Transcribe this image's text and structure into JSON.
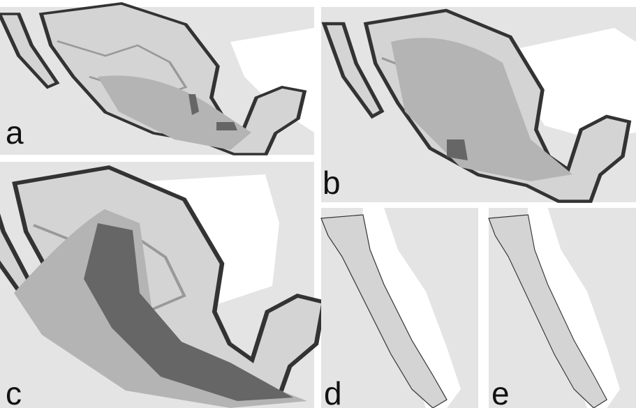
{
  "panels": [
    {
      "label": "a"
    },
    {
      "label": "b"
    },
    {
      "label": "c"
    },
    {
      "label": "d"
    },
    {
      "label": "e"
    }
  ]
}
